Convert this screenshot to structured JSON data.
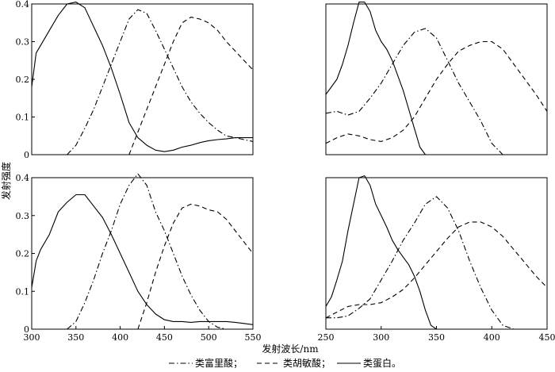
{
  "chart_data": {
    "type": "line",
    "ylabel": "发射强度",
    "xlabel": "发射波长/nm",
    "legend": [
      {
        "series": "fulvic",
        "label": "类富里酸；",
        "style": "dashdot"
      },
      {
        "series": "humic",
        "label": "类胡敏酸；",
        "style": "dashed"
      },
      {
        "series": "protein",
        "label": "类蛋白。",
        "style": "solid"
      }
    ],
    "panels": [
      {
        "position": "top-left",
        "xlim": [
          300,
          550
        ],
        "ylim": [
          0,
          0.4
        ],
        "xticks": [],
        "yticks": [
          {
            "value": 0,
            "label": "0"
          },
          {
            "value": 0.1,
            "label": "0.1"
          },
          {
            "value": 0.2,
            "label": "0.2"
          },
          {
            "value": 0.3,
            "label": "0.3"
          },
          {
            "value": 0.4,
            "label": "0.4"
          }
        ],
        "series": [
          {
            "id": "protein",
            "style": "solid",
            "x": [
              300,
              305,
              310,
              320,
              330,
              340,
              350,
              360,
              370,
              380,
              390,
              400,
              410,
              420,
              430,
              440,
              450,
              460,
              470,
              480,
              490,
              500,
              510,
              520,
              530,
              540,
              550
            ],
            "y": [
              0.18,
              0.27,
              0.29,
              0.33,
              0.37,
              0.4,
              0.405,
              0.39,
              0.34,
              0.29,
              0.23,
              0.16,
              0.085,
              0.045,
              0.025,
              0.012,
              0.008,
              0.012,
              0.02,
              0.025,
              0.032,
              0.037,
              0.04,
              0.042,
              0.045,
              0.045,
              0.045
            ]
          },
          {
            "id": "fulvic",
            "style": "dashdot",
            "x": [
              340,
              350,
              360,
              370,
              380,
              390,
              400,
              410,
              420,
              430,
              440,
              450,
              460,
              470,
              480,
              490,
              500,
              510,
              520,
              530,
              540,
              550
            ],
            "y": [
              0.0,
              0.025,
              0.07,
              0.12,
              0.18,
              0.24,
              0.3,
              0.36,
              0.385,
              0.375,
              0.33,
              0.28,
              0.23,
              0.18,
              0.14,
              0.11,
              0.085,
              0.065,
              0.05,
              0.045,
              0.04,
              0.035
            ]
          },
          {
            "id": "humic",
            "style": "dashed",
            "x": [
              410,
              420,
              430,
              440,
              450,
              460,
              470,
              480,
              490,
              500,
              510,
              520,
              530,
              540,
              550
            ],
            "y": [
              0.0,
              0.06,
              0.12,
              0.18,
              0.24,
              0.3,
              0.35,
              0.365,
              0.36,
              0.35,
              0.33,
              0.3,
              0.275,
              0.25,
              0.225
            ]
          }
        ]
      },
      {
        "position": "top-right",
        "xlim": [
          250,
          450
        ],
        "ylim": [
          0,
          0.4
        ],
        "xticks": [],
        "yticks": [],
        "series": [
          {
            "id": "protein",
            "style": "solid",
            "x": [
              250,
              255,
              260,
              265,
              270,
              275,
              280,
              285,
              290,
              295,
              300,
              305,
              310,
              315,
              320,
              325,
              330,
              335,
              340,
              345,
              350,
              360,
              380,
              400,
              420,
              440,
              450
            ],
            "y": [
              0.16,
              0.18,
              0.2,
              0.24,
              0.29,
              0.35,
              0.405,
              0.405,
              0.38,
              0.33,
              0.3,
              0.28,
              0.25,
              0.21,
              0.17,
              0.12,
              0.07,
              0.02,
              0.0,
              0.0,
              0.0,
              0.0,
              0.0,
              0.0,
              0.0,
              0.0,
              0.0
            ]
          },
          {
            "id": "fulvic",
            "style": "dashdot",
            "x": [
              250,
              260,
              270,
              280,
              290,
              300,
              310,
              320,
              330,
              340,
              350,
              360,
              370,
              380,
              390,
              400,
              410,
              420,
              440,
              450
            ],
            "y": [
              0.11,
              0.115,
              0.105,
              0.115,
              0.15,
              0.19,
              0.24,
              0.29,
              0.325,
              0.335,
              0.31,
              0.25,
              0.19,
              0.14,
              0.09,
              0.03,
              0.0,
              0.0,
              0.0,
              0.0
            ]
          },
          {
            "id": "humic",
            "style": "dashed",
            "x": [
              250,
              260,
              270,
              280,
              290,
              300,
              310,
              320,
              330,
              340,
              350,
              360,
              370,
              380,
              390,
              400,
              410,
              420,
              430,
              440,
              450
            ],
            "y": [
              0.03,
              0.045,
              0.055,
              0.05,
              0.04,
              0.035,
              0.045,
              0.065,
              0.1,
              0.15,
              0.2,
              0.24,
              0.275,
              0.29,
              0.3,
              0.3,
              0.28,
              0.24,
              0.2,
              0.16,
              0.115
            ]
          }
        ]
      },
      {
        "position": "bottom-left",
        "xlim": [
          300,
          550
        ],
        "ylim": [
          0,
          0.4
        ],
        "xticks": [
          {
            "value": 300,
            "label": "300"
          },
          {
            "value": 350,
            "label": "350"
          },
          {
            "value": 400,
            "label": "400"
          },
          {
            "value": 450,
            "label": "450"
          },
          {
            "value": 500,
            "label": "500"
          },
          {
            "value": 550,
            "label": "550"
          }
        ],
        "yticks": [
          {
            "value": 0,
            "label": "0"
          },
          {
            "value": 0.1,
            "label": "0.1"
          },
          {
            "value": 0.2,
            "label": "0.2"
          },
          {
            "value": 0.3,
            "label": "0.3"
          },
          {
            "value": 0.4,
            "label": "0.4"
          }
        ],
        "series": [
          {
            "id": "protein",
            "style": "solid",
            "x": [
              300,
              305,
              310,
              320,
              330,
              340,
              350,
              360,
              370,
              380,
              390,
              400,
              410,
              420,
              430,
              440,
              450,
              460,
              470,
              480,
              490,
              500,
              510,
              520,
              530,
              540,
              550
            ],
            "y": [
              0.11,
              0.18,
              0.21,
              0.25,
              0.31,
              0.335,
              0.355,
              0.355,
              0.325,
              0.295,
              0.25,
              0.2,
              0.15,
              0.1,
              0.065,
              0.04,
              0.025,
              0.02,
              0.02,
              0.018,
              0.02,
              0.02,
              0.02,
              0.02,
              0.018,
              0.015,
              0.012
            ]
          },
          {
            "id": "fulvic",
            "style": "dashdot",
            "x": [
              340,
              350,
              360,
              370,
              380,
              390,
              400,
              410,
              420,
              430,
              440,
              450,
              460,
              470,
              480,
              490,
              500,
              510,
              520
            ],
            "y": [
              0.0,
              0.02,
              0.07,
              0.13,
              0.2,
              0.26,
              0.33,
              0.38,
              0.41,
              0.38,
              0.31,
              0.26,
              0.2,
              0.14,
              0.09,
              0.05,
              0.02,
              0.005,
              0.0
            ]
          },
          {
            "id": "humic",
            "style": "dashed",
            "x": [
              420,
              430,
              440,
              450,
              460,
              470,
              480,
              490,
              500,
              510,
              520,
              530,
              540,
              550
            ],
            "y": [
              0.0,
              0.07,
              0.15,
              0.22,
              0.28,
              0.32,
              0.33,
              0.325,
              0.315,
              0.31,
              0.29,
              0.26,
              0.23,
              0.2
            ]
          }
        ]
      },
      {
        "position": "bottom-right",
        "xlim": [
          250,
          450
        ],
        "ylim": [
          0,
          0.4
        ],
        "xticks": [
          {
            "value": 250,
            "label": "250"
          },
          {
            "value": 300,
            "label": "300"
          },
          {
            "value": 350,
            "label": "350"
          },
          {
            "value": 400,
            "label": "400"
          },
          {
            "value": 450,
            "label": "450"
          }
        ],
        "yticks": [],
        "series": [
          {
            "id": "protein",
            "style": "solid",
            "x": [
              250,
              255,
              260,
              265,
              270,
              275,
              280,
              285,
              290,
              295,
              300,
              305,
              310,
              315,
              320,
              325,
              330,
              335,
              340,
              345,
              350,
              360,
              380,
              400,
              420,
              440,
              450
            ],
            "y": [
              0.06,
              0.085,
              0.13,
              0.18,
              0.26,
              0.33,
              0.4,
              0.405,
              0.38,
              0.33,
              0.3,
              0.27,
              0.235,
              0.21,
              0.19,
              0.17,
              0.14,
              0.1,
              0.05,
              0.01,
              0.0,
              0.0,
              0.0,
              0.0,
              0.0,
              0.0,
              0.0
            ]
          },
          {
            "id": "fulvic",
            "style": "dashdot",
            "x": [
              250,
              260,
              270,
              280,
              290,
              300,
              310,
              320,
              330,
              340,
              350,
              360,
              370,
              380,
              390,
              400,
              410,
              420,
              440,
              450
            ],
            "y": [
              0.03,
              0.03,
              0.035,
              0.055,
              0.08,
              0.13,
              0.18,
              0.235,
              0.28,
              0.33,
              0.35,
              0.32,
              0.26,
              0.18,
              0.11,
              0.05,
              0.01,
              0.0,
              0.0,
              0.0
            ]
          },
          {
            "id": "humic",
            "style": "dashed",
            "x": [
              250,
              260,
              270,
              280,
              290,
              300,
              310,
              320,
              330,
              340,
              350,
              360,
              370,
              380,
              390,
              400,
              410,
              420,
              430,
              440,
              450
            ],
            "y": [
              0.03,
              0.045,
              0.06,
              0.065,
              0.065,
              0.07,
              0.085,
              0.105,
              0.135,
              0.17,
              0.205,
              0.24,
              0.27,
              0.283,
              0.283,
              0.27,
              0.245,
              0.21,
              0.175,
              0.14,
              0.11
            ]
          }
        ]
      }
    ]
  }
}
